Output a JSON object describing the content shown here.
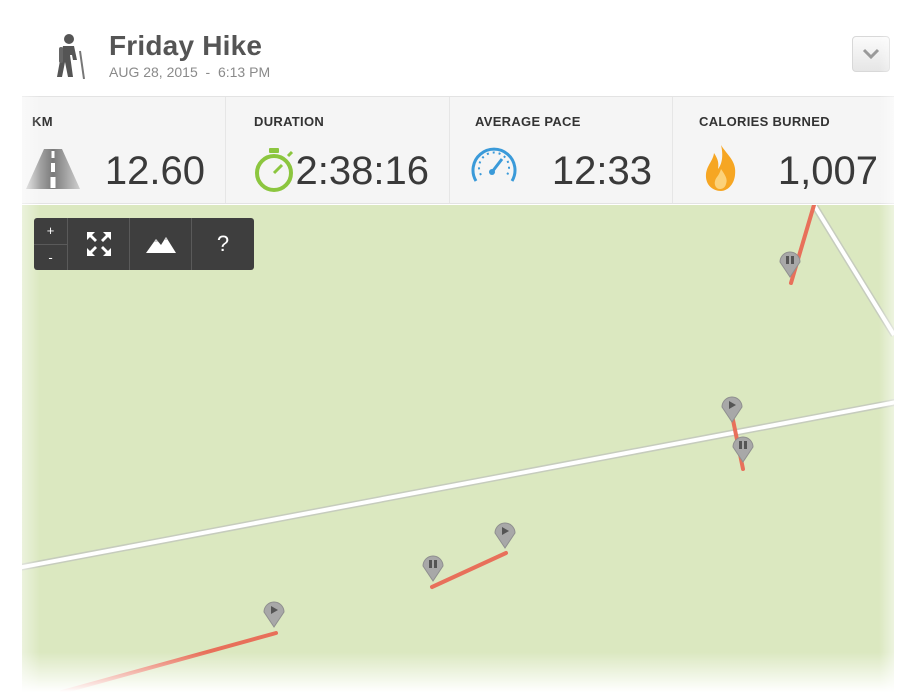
{
  "activity": {
    "title": "Friday Hike",
    "date": "AUG 28, 2015",
    "separator": "  -  ",
    "time": "6:13 PM",
    "icon": "hiker-icon"
  },
  "stats": [
    {
      "label": "KM",
      "value": "12.60",
      "icon": "road-icon"
    },
    {
      "label": "DURATION",
      "value": "2:38:16",
      "icon": "stopwatch-icon"
    },
    {
      "label": "AVERAGE PACE",
      "value": "12:33",
      "icon": "speedometer-icon"
    },
    {
      "label": "CALORIES BURNED",
      "value": "1,007",
      "icon": "flame-icon"
    }
  ],
  "map_controls": {
    "zoom_in": "+",
    "zoom_out": "-",
    "fullscreen_icon": "expand-icon",
    "terrain_icon": "mountain-icon",
    "help": "?"
  },
  "colors": {
    "map_bg": "#dbe8c0",
    "route": "#e8705a",
    "road": "#ffffff",
    "marker": "#a8a8a8",
    "stopwatch": "#8cc63f",
    "speedometer": "#3a9ad9",
    "flame": "#f6a623"
  }
}
